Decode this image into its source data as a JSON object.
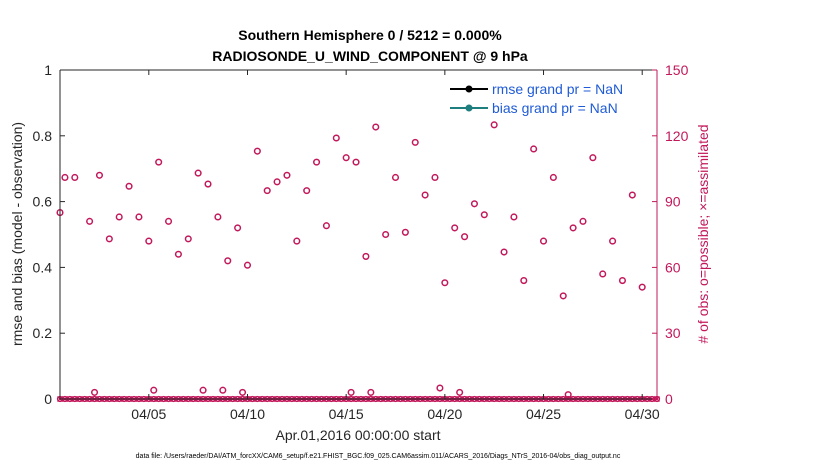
{
  "chart_data": {
    "type": "scatter",
    "title_line1": "Southern Hemisphere 0 / 5212 = 0.000%",
    "title_line2": "RADIOSONDE_U_WIND_COMPONENT @ 9 hPa",
    "xlabel": "Apr.01,2016 00:00:00 start",
    "ylabel_left": "rmse and bias (model - observation)",
    "ylabel_right": "# of obs: o=possible; ×=assimilated",
    "footer": "data file: /Users/raeder/DAI/ATM_forcXX/CAM6_setup/f.e21.FHIST_BGC.f09_025.CAM6assim.011/ACARS_2016/Diags_NTrS_2016-04/obs_diag_output.nc",
    "xlim": [
      0.5,
      30.75
    ],
    "ylim_left": [
      0,
      1
    ],
    "ylim_right": [
      0,
      150
    ],
    "x_ticks": [
      {
        "value": 5,
        "label": "04/05"
      },
      {
        "value": 10,
        "label": "04/10"
      },
      {
        "value": 15,
        "label": "04/15"
      },
      {
        "value": 20,
        "label": "04/20"
      },
      {
        "value": 25,
        "label": "04/25"
      },
      {
        "value": 30,
        "label": "04/30"
      }
    ],
    "y_left_ticks": [
      {
        "value": 0,
        "label": "0"
      },
      {
        "value": 0.2,
        "label": "0.2"
      },
      {
        "value": 0.4,
        "label": "0.4"
      },
      {
        "value": 0.6,
        "label": "0.6"
      },
      {
        "value": 0.8,
        "label": "0.8"
      },
      {
        "value": 1,
        "label": "1"
      }
    ],
    "y_right_ticks": [
      {
        "value": 0,
        "label": "0"
      },
      {
        "value": 30,
        "label": "30"
      },
      {
        "value": 60,
        "label": "60"
      },
      {
        "value": 90,
        "label": "90"
      },
      {
        "value": 120,
        "label": "120"
      },
      {
        "value": 150,
        "label": "150"
      }
    ],
    "legend": [
      {
        "label": "rmse grand pr = NaN",
        "color": "#000000"
      },
      {
        "label": "bias grand pr = NaN",
        "color": "#1f7f7f"
      }
    ],
    "legend_position": "top-right",
    "obs_color": "#c2185b",
    "obs_possible": [
      {
        "x": 0.5,
        "y": 85
      },
      {
        "x": 0.75,
        "y": 101
      },
      {
        "x": 1.25,
        "y": 101
      },
      {
        "x": 2.0,
        "y": 81
      },
      {
        "x": 2.5,
        "y": 102
      },
      {
        "x": 3.0,
        "y": 73
      },
      {
        "x": 3.5,
        "y": 83
      },
      {
        "x": 4.0,
        "y": 97
      },
      {
        "x": 4.5,
        "y": 83
      },
      {
        "x": 5.0,
        "y": 72
      },
      {
        "x": 5.5,
        "y": 108
      },
      {
        "x": 6.0,
        "y": 81
      },
      {
        "x": 6.5,
        "y": 66
      },
      {
        "x": 7.0,
        "y": 73
      },
      {
        "x": 7.5,
        "y": 103
      },
      {
        "x": 8.0,
        "y": 98
      },
      {
        "x": 8.5,
        "y": 83
      },
      {
        "x": 9.0,
        "y": 63
      },
      {
        "x": 9.5,
        "y": 78
      },
      {
        "x": 10.0,
        "y": 61
      },
      {
        "x": 10.5,
        "y": 113
      },
      {
        "x": 11.0,
        "y": 95
      },
      {
        "x": 11.5,
        "y": 99
      },
      {
        "x": 12.0,
        "y": 102
      },
      {
        "x": 12.5,
        "y": 72
      },
      {
        "x": 13.0,
        "y": 95
      },
      {
        "x": 13.5,
        "y": 108
      },
      {
        "x": 14.0,
        "y": 79
      },
      {
        "x": 14.5,
        "y": 119
      },
      {
        "x": 15.0,
        "y": 110
      },
      {
        "x": 15.5,
        "y": 108
      },
      {
        "x": 16.0,
        "y": 65
      },
      {
        "x": 16.5,
        "y": 124
      },
      {
        "x": 17.0,
        "y": 75
      },
      {
        "x": 17.5,
        "y": 101
      },
      {
        "x": 18.0,
        "y": 76
      },
      {
        "x": 18.5,
        "y": 117
      },
      {
        "x": 19.0,
        "y": 93
      },
      {
        "x": 19.5,
        "y": 101
      },
      {
        "x": 20.0,
        "y": 53
      },
      {
        "x": 20.5,
        "y": 78
      },
      {
        "x": 21.0,
        "y": 74
      },
      {
        "x": 21.5,
        "y": 89
      },
      {
        "x": 22.0,
        "y": 84
      },
      {
        "x": 22.5,
        "y": 125
      },
      {
        "x": 23.0,
        "y": 67
      },
      {
        "x": 23.5,
        "y": 83
      },
      {
        "x": 24.0,
        "y": 54
      },
      {
        "x": 24.5,
        "y": 114
      },
      {
        "x": 25.0,
        "y": 72
      },
      {
        "x": 25.5,
        "y": 101
      },
      {
        "x": 26.0,
        "y": 47
      },
      {
        "x": 26.5,
        "y": 78
      },
      {
        "x": 27.0,
        "y": 81
      },
      {
        "x": 27.5,
        "y": 110
      },
      {
        "x": 28.0,
        "y": 57
      },
      {
        "x": 28.5,
        "y": 72
      },
      {
        "x": 29.0,
        "y": 54
      },
      {
        "x": 29.5,
        "y": 93
      },
      {
        "x": 30.0,
        "y": 51
      }
    ],
    "obs_possible_low": [
      {
        "x": 2.25,
        "y": 3
      },
      {
        "x": 5.25,
        "y": 4
      },
      {
        "x": 7.75,
        "y": 4
      },
      {
        "x": 8.75,
        "y": 4
      },
      {
        "x": 9.75,
        "y": 3
      },
      {
        "x": 15.25,
        "y": 3
      },
      {
        "x": 16.25,
        "y": 3
      },
      {
        "x": 19.75,
        "y": 5
      },
      {
        "x": 20.75,
        "y": 3
      },
      {
        "x": 26.25,
        "y": 2
      }
    ],
    "obs_assimilated_count": 0,
    "rmse": null,
    "bias": null
  }
}
